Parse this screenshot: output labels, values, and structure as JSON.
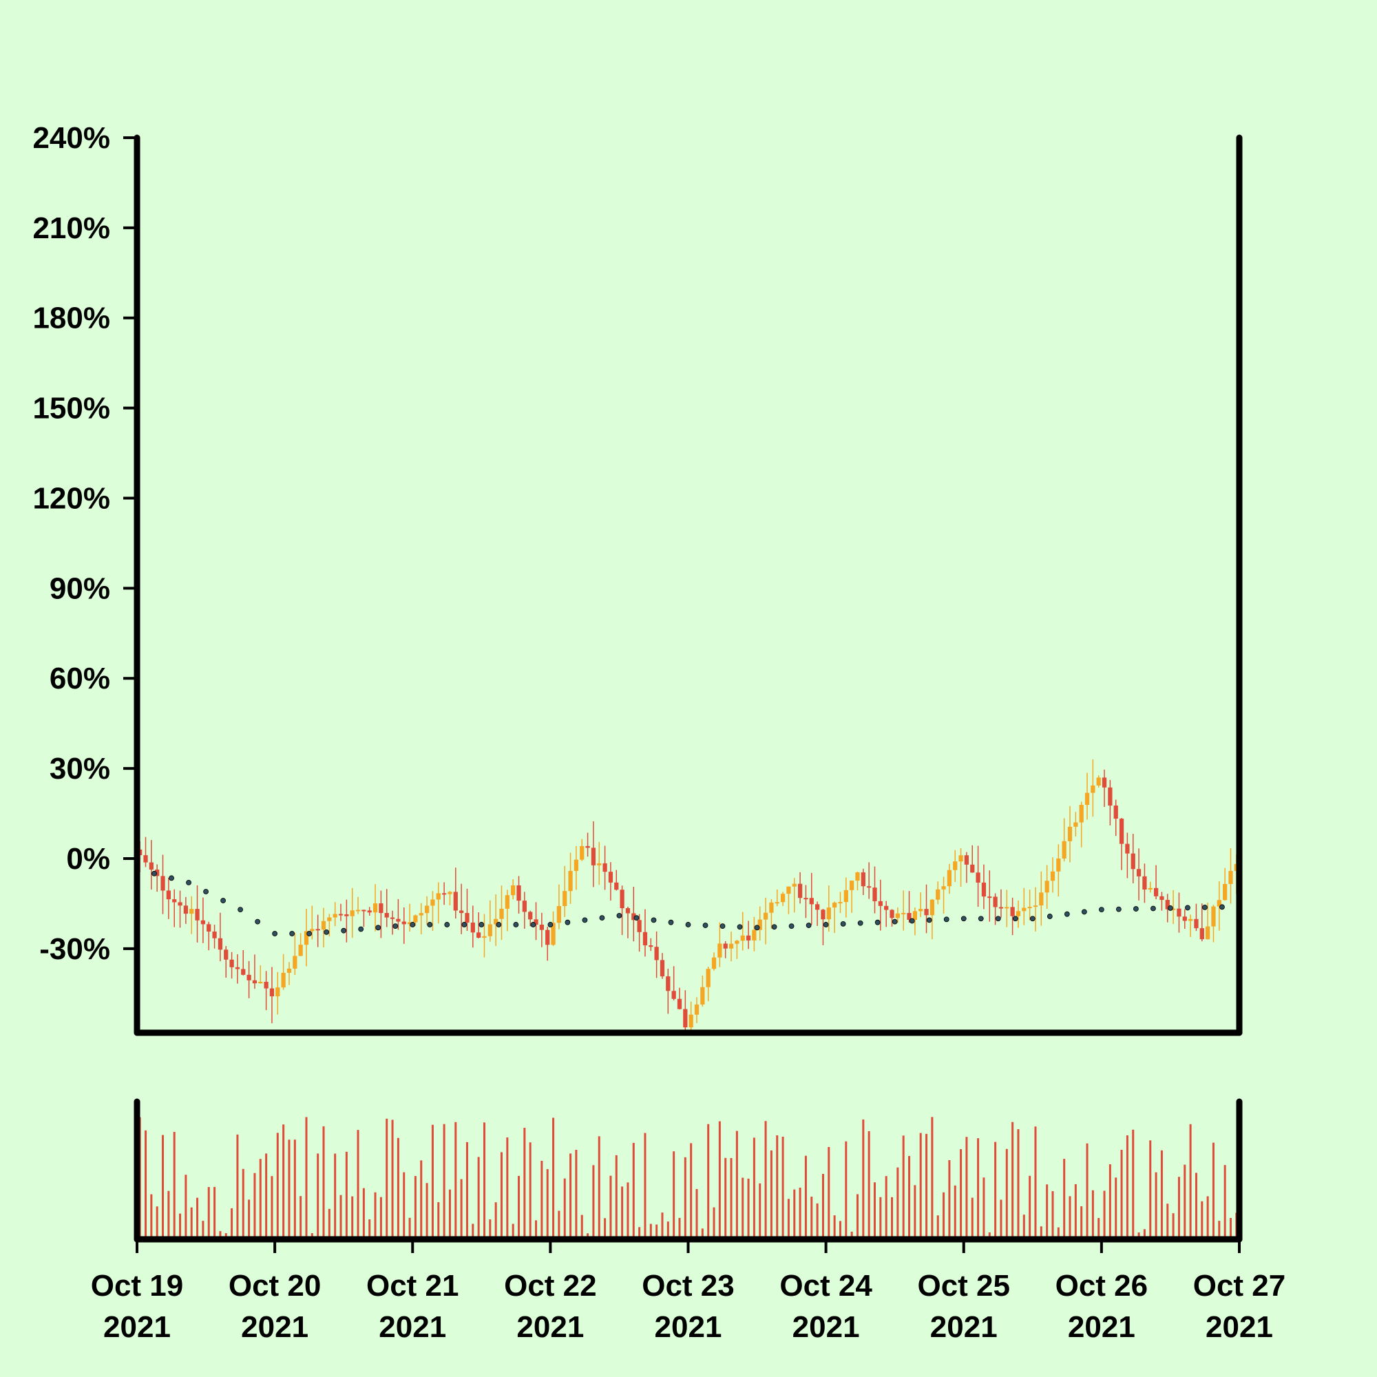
{
  "chart_data": {
    "type": "candlestick",
    "y_unit": "%",
    "ylim": [
      -58,
      240
    ],
    "y_ticks": [
      {
        "value": 240,
        "label": "240%"
      },
      {
        "value": 210,
        "label": "210%"
      },
      {
        "value": 180,
        "label": "180%"
      },
      {
        "value": 150,
        "label": "150%"
      },
      {
        "value": 120,
        "label": "120%"
      },
      {
        "value": 90,
        "label": "90%"
      },
      {
        "value": 60,
        "label": "60%"
      },
      {
        "value": 30,
        "label": "30%"
      },
      {
        "value": 0,
        "label": "0%"
      },
      {
        "value": -30,
        "label": "-30%"
      }
    ],
    "x_range": [
      "2021-10-19 00:00",
      "2021-10-27 00:00"
    ],
    "x_ticks": [
      {
        "date": "2021-10-19",
        "line1": "Oct 19",
        "line2": "2021"
      },
      {
        "date": "2021-10-20",
        "line1": "Oct 20",
        "line2": "2021"
      },
      {
        "date": "2021-10-21",
        "line1": "Oct 21",
        "line2": "2021"
      },
      {
        "date": "2021-10-22",
        "line1": "Oct 22",
        "line2": "2021"
      },
      {
        "date": "2021-10-23",
        "line1": "Oct 23",
        "line2": "2021"
      },
      {
        "date": "2021-10-24",
        "line1": "Oct 24",
        "line2": "2021"
      },
      {
        "date": "2021-10-25",
        "line1": "Oct 25",
        "line2": "2021"
      },
      {
        "date": "2021-10-26",
        "line1": "Oct 26",
        "line2": "2021"
      },
      {
        "date": "2021-10-27",
        "line1": "Oct 27",
        "line2": "2021"
      }
    ],
    "close_path": [
      {
        "t": "2021-10-19 00:00",
        "v": 3
      },
      {
        "t": "2021-10-19 06:00",
        "v": -12
      },
      {
        "t": "2021-10-19 12:00",
        "v": -22
      },
      {
        "t": "2021-10-19 18:00",
        "v": -38
      },
      {
        "t": "2021-10-20 00:00",
        "v": -45
      },
      {
        "t": "2021-10-20 06:00",
        "v": -25
      },
      {
        "t": "2021-10-20 12:00",
        "v": -18
      },
      {
        "t": "2021-10-20 18:00",
        "v": -16
      },
      {
        "t": "2021-10-21 00:00",
        "v": -22
      },
      {
        "t": "2021-10-21 06:00",
        "v": -10
      },
      {
        "t": "2021-10-21 12:00",
        "v": -28
      },
      {
        "t": "2021-10-21 18:00",
        "v": -10
      },
      {
        "t": "2021-10-22 00:00",
        "v": -28
      },
      {
        "t": "2021-10-22 06:00",
        "v": 5
      },
      {
        "t": "2021-10-22 12:00",
        "v": -12
      },
      {
        "t": "2021-10-22 18:00",
        "v": -30
      },
      {
        "t": "2021-10-23 00:00",
        "v": -55
      },
      {
        "t": "2021-10-23 06:00",
        "v": -30
      },
      {
        "t": "2021-10-23 12:00",
        "v": -25
      },
      {
        "t": "2021-10-23 18:00",
        "v": -8
      },
      {
        "t": "2021-10-24 00:00",
        "v": -20
      },
      {
        "t": "2021-10-24 06:00",
        "v": -5
      },
      {
        "t": "2021-10-24 12:00",
        "v": -20
      },
      {
        "t": "2021-10-24 18:00",
        "v": -18
      },
      {
        "t": "2021-10-25 00:00",
        "v": 2
      },
      {
        "t": "2021-10-25 06:00",
        "v": -18
      },
      {
        "t": "2021-10-25 12:00",
        "v": -18
      },
      {
        "t": "2021-10-25 18:00",
        "v": 5
      },
      {
        "t": "2021-10-26 00:00",
        "v": 28
      },
      {
        "t": "2021-10-26 06:00",
        "v": -5
      },
      {
        "t": "2021-10-26 12:00",
        "v": -15
      },
      {
        "t": "2021-10-26 18:00",
        "v": -25
      },
      {
        "t": "2021-10-27 00:00",
        "v": 0
      }
    ],
    "moving_average": [
      {
        "t": "2021-10-19 00:00",
        "v": 0
      },
      {
        "t": "2021-10-19 03:00",
        "v": -5
      },
      {
        "t": "2021-10-19 09:00",
        "v": -8
      },
      {
        "t": "2021-10-19 18:00",
        "v": -17
      },
      {
        "t": "2021-10-20 00:00",
        "v": -25
      },
      {
        "t": "2021-10-20 06:00",
        "v": -25
      },
      {
        "t": "2021-10-20 12:00",
        "v": -24
      },
      {
        "t": "2021-10-21 00:00",
        "v": -22
      },
      {
        "t": "2021-10-22 00:00",
        "v": -22
      },
      {
        "t": "2021-10-22 12:00",
        "v": -19
      },
      {
        "t": "2021-10-23 00:00",
        "v": -22
      },
      {
        "t": "2021-10-23 12:00",
        "v": -23
      },
      {
        "t": "2021-10-24 00:00",
        "v": -22
      },
      {
        "t": "2021-10-25 00:00",
        "v": -20
      },
      {
        "t": "2021-10-25 12:00",
        "v": -20
      },
      {
        "t": "2021-10-26 00:00",
        "v": -17
      },
      {
        "t": "2021-10-27 00:00",
        "v": -16
      }
    ],
    "candle_interval_hours": 1,
    "colors": {
      "background": "#dcfed8",
      "up": "#f5a623",
      "down": "#e04b3a",
      "moving_average": "#2f4f5f",
      "volume": "#e04b3a",
      "axis": "#000000"
    },
    "grid": false,
    "legend": "none"
  }
}
